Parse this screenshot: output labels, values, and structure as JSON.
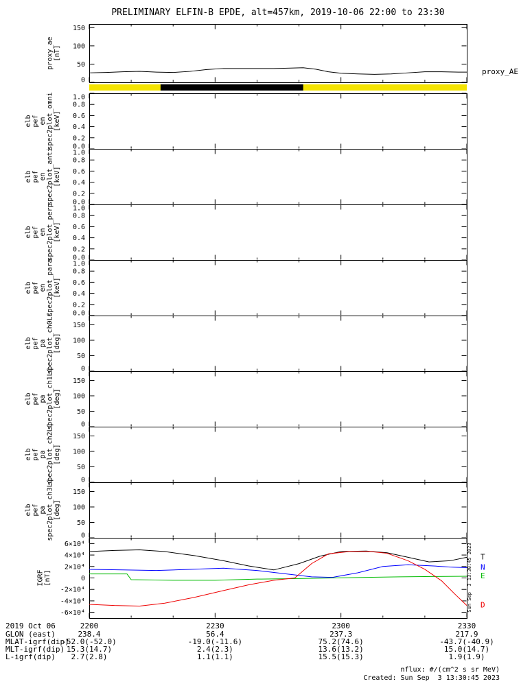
{
  "title": "PRELIMINARY ELFIN-B EPDE, alt=457km, 2019-10-06 22:00 to 23:30",
  "x_axis": {
    "date_label": "2019 Oct 06",
    "tick_labels": [
      "2200",
      "2230",
      "2300",
      "2330"
    ],
    "tick_minutes": [
      0,
      30,
      60,
      90
    ],
    "minor_step_minutes": 10,
    "range_minutes": [
      0,
      90
    ]
  },
  "footer": {
    "rows": [
      {
        "label": "GLON (east)",
        "values": [
          "238.4",
          "56.4",
          "237.3",
          "217.9"
        ]
      },
      {
        "label": "MLAT-igrf(dip)",
        "values": [
          "-52.0(-52.0)",
          "-19.0(-11.6)",
          "75.2(74.6)",
          "-43.7(-40.9)"
        ]
      },
      {
        "label": "MLT-igrf(dip)",
        "values": [
          "15.3(14.7)",
          "2.4(2.3)",
          "13.6(13.2)",
          "15.0(14.7)"
        ]
      },
      {
        "label": "L-igrf(dip)",
        "values": [
          "2.7(2.8)",
          "1.1(1.1)",
          "15.5(15.3)",
          "1.9(1.9)"
        ]
      }
    ]
  },
  "credits": {
    "nflux_note": "nflux: #/(cm^2 s sr MeV)",
    "created": "Created: Sun Sep  3 13:30:45 2023",
    "side_timestamp": "Sun Sep  3 13:30:45 2023"
  },
  "colors": {
    "line_black": "#000000",
    "line_blue": "#0000ff",
    "line_green": "#00bb00",
    "line_red": "#ee0000",
    "flag_yellow": "#f4e300",
    "flag_black": "#000000"
  },
  "chart_data": [
    {
      "id": "proxy_ae",
      "type": "line",
      "ylabel_lines": [
        "proxy_ae",
        "[nT]"
      ],
      "right_label": "proxy_AE",
      "ylim": [
        0,
        160
      ],
      "yticks": [
        0,
        50,
        100,
        150
      ],
      "ytick_labels": [
        "0",
        "50",
        "100",
        "150"
      ],
      "series": [
        {
          "name": "proxy_AE",
          "color": "#000000",
          "x": [
            0,
            4,
            8,
            12,
            16,
            20,
            24,
            28,
            32,
            36,
            40,
            44,
            48,
            51,
            54,
            57,
            60,
            64,
            68,
            72,
            76,
            80,
            84,
            88,
            90
          ],
          "y": [
            26,
            27,
            29,
            30,
            28,
            27,
            30,
            35,
            38,
            38,
            38,
            38,
            39,
            40,
            36,
            29,
            25,
            23,
            22,
            23,
            26,
            29,
            29,
            28,
            28
          ]
        }
      ]
    },
    {
      "id": "flag_strip",
      "type": "strip",
      "segments": [
        {
          "xstart": 0,
          "xend": 90,
          "color": "#f4e300"
        },
        {
          "xstart": 17,
          "xend": 51,
          "color": "#000000"
        }
      ]
    },
    {
      "id": "en_omni",
      "type": "spectrogram_empty",
      "ylabel_lines": [
        "elb",
        "pef",
        "en",
        "spec2plot_omni",
        "[keV]"
      ],
      "ylim": [
        0,
        1
      ],
      "yticks": [
        0,
        0.2,
        0.4,
        0.6,
        0.8,
        1.0
      ],
      "ytick_labels": [
        "0.0",
        "0.2",
        "0.4",
        "0.6",
        "0.8",
        "1.0"
      ],
      "series": []
    },
    {
      "id": "en_anti",
      "type": "spectrogram_empty",
      "ylabel_lines": [
        "elb",
        "pef",
        "en",
        "spec2plot_anti",
        "[keV]"
      ],
      "ylim": [
        0,
        1
      ],
      "yticks": [
        0,
        0.2,
        0.4,
        0.6,
        0.8,
        1.0
      ],
      "ytick_labels": [
        "0.0",
        "0.2",
        "0.4",
        "0.6",
        "0.8",
        "1.0"
      ],
      "series": []
    },
    {
      "id": "en_perp",
      "type": "spectrogram_empty",
      "ylabel_lines": [
        "elb",
        "pef",
        "en",
        "spec2plot_perp",
        "[keV]"
      ],
      "ylim": [
        0,
        1
      ],
      "yticks": [
        0,
        0.2,
        0.4,
        0.6,
        0.8,
        1.0
      ],
      "ytick_labels": [
        "0.0",
        "0.2",
        "0.4",
        "0.6",
        "0.8",
        "1.0"
      ],
      "series": []
    },
    {
      "id": "en_para",
      "type": "spectrogram_empty",
      "ylabel_lines": [
        "elb",
        "pef",
        "en",
        "spec2plot_para",
        "[keV]"
      ],
      "ylim": [
        0,
        1
      ],
      "yticks": [
        0,
        0.2,
        0.4,
        0.6,
        0.8,
        1.0
      ],
      "ytick_labels": [
        "0.0",
        "0.2",
        "0.4",
        "0.6",
        "0.8",
        "1.0"
      ],
      "series": []
    },
    {
      "id": "pa_ch0",
      "type": "spectrogram_empty",
      "ylabel_lines": [
        "elb",
        "pef",
        "pa",
        "spec2plot_ch0LC",
        "[deg]"
      ],
      "ylim": [
        0,
        180
      ],
      "yticks": [
        0,
        50,
        100,
        150
      ],
      "ytick_labels": [
        "0",
        "50",
        "100",
        "150"
      ],
      "series": []
    },
    {
      "id": "pa_ch1",
      "type": "spectrogram_empty",
      "ylabel_lines": [
        "elb",
        "pef",
        "pa",
        "spec2plot_ch1LC",
        "[deg]"
      ],
      "ylim": [
        0,
        180
      ],
      "yticks": [
        0,
        50,
        100,
        150
      ],
      "ytick_labels": [
        "0",
        "50",
        "100",
        "150"
      ],
      "series": []
    },
    {
      "id": "pa_ch2",
      "type": "spectrogram_empty",
      "ylabel_lines": [
        "elb",
        "pef",
        "pa",
        "spec2plot_ch2LC",
        "[deg]"
      ],
      "ylim": [
        0,
        180
      ],
      "yticks": [
        0,
        50,
        100,
        150
      ],
      "ytick_labels": [
        "0",
        "50",
        "100",
        "150"
      ],
      "series": []
    },
    {
      "id": "pa_ch3",
      "type": "spectrogram_empty",
      "ylabel_lines": [
        "elb",
        "pef",
        "pa",
        "spec2plot_ch3LC",
        "[deg]"
      ],
      "ylim": [
        0,
        180
      ],
      "yticks": [
        0,
        50,
        100,
        150
      ],
      "ytick_labels": [
        "0",
        "50",
        "100",
        "150"
      ],
      "series": []
    },
    {
      "id": "igrf",
      "type": "line",
      "ylabel_lines": [
        "IGRF",
        "[nT]"
      ],
      "label_right_x": 72,
      "ylim": [
        -70000,
        70000
      ],
      "yticks": [
        -60000,
        -40000,
        -20000,
        0,
        20000,
        40000,
        60000
      ],
      "ytick_labels": [
        "-6×10⁴",
        "-4×10⁴",
        "-2×10⁴",
        "0",
        "2×10⁴",
        "4×10⁴",
        "6×10⁴"
      ],
      "legend": [
        {
          "label": "T",
          "color": "#000000"
        },
        {
          "label": "N",
          "color": "#0000ff"
        },
        {
          "label": "E",
          "color": "#00bb00"
        },
        {
          "label": "D",
          "color": "#ee0000"
        }
      ],
      "series": [
        {
          "name": "T",
          "color": "#000000",
          "x": [
            0,
            6,
            12,
            18,
            25,
            32,
            38,
            44,
            50,
            55,
            60,
            66,
            71,
            76,
            81,
            86,
            90
          ],
          "y": [
            46000,
            48000,
            49000,
            46000,
            39000,
            30000,
            21000,
            14000,
            25000,
            38000,
            46000,
            47000,
            44000,
            36000,
            28000,
            30000,
            36000
          ]
        },
        {
          "name": "N",
          "color": "#0000ff",
          "x": [
            0,
            8,
            16,
            24,
            32,
            40,
            47,
            53,
            58,
            64,
            70,
            76,
            82,
            86,
            90
          ],
          "y": [
            15000,
            14000,
            13000,
            15000,
            17000,
            13000,
            7000,
            2000,
            1000,
            9000,
            20000,
            23000,
            21000,
            19000,
            18000
          ]
        },
        {
          "name": "E",
          "color": "#00bb00",
          "x": [
            0,
            9,
            10,
            20,
            30,
            40,
            50,
            58,
            66,
            74,
            82,
            90
          ],
          "y": [
            7000,
            7000,
            -3000,
            -4000,
            -4000,
            -2000,
            -1000,
            0,
            1000,
            2000,
            2500,
            3000
          ]
        },
        {
          "name": "D",
          "color": "#ee0000",
          "x": [
            0,
            6,
            12,
            18,
            25,
            32,
            38,
            44,
            49,
            53,
            57,
            62,
            67,
            71,
            76,
            80,
            84,
            87,
            90
          ],
          "y": [
            -46000,
            -48000,
            -49000,
            -44000,
            -34000,
            -22000,
            -12000,
            -4000,
            0,
            25000,
            42000,
            46000,
            46000,
            43000,
            30000,
            15000,
            -5000,
            -27000,
            -48000
          ]
        }
      ]
    }
  ]
}
